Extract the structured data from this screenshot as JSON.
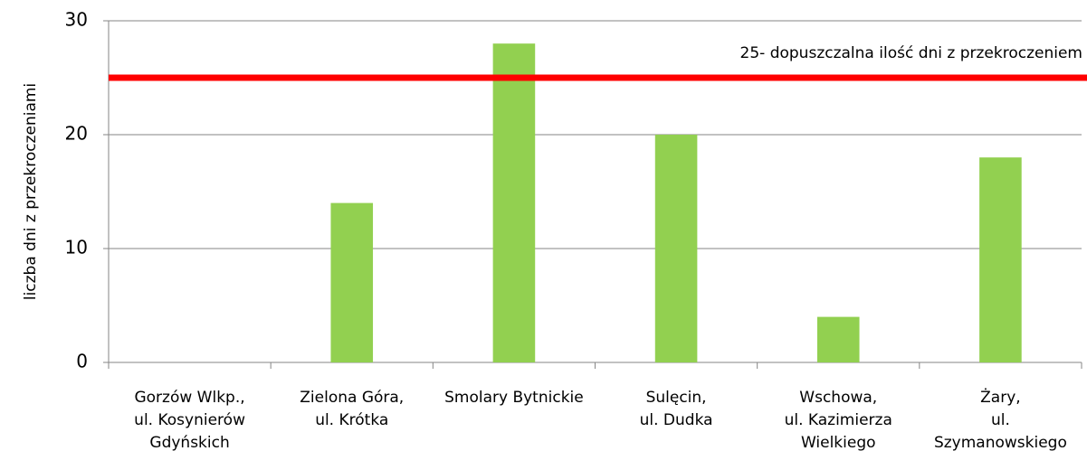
{
  "chart_data": {
    "type": "bar",
    "y_label": "liczba dni z przekroczeniami",
    "categories": [
      "Gorzów Wlkp.,\nul. Kosynierów\nGdyńskich",
      "Zielona Góra,\nul. Krótka",
      "Smolary Bytnickie",
      "Sulęcin,\nul. Dudka",
      "Wschowa,\nul. Kazimierza\nWielkiego",
      "Żary,\nul.\nSzymanowskiego"
    ],
    "values": [
      0,
      14,
      28,
      20,
      4,
      18
    ],
    "color": "#92d050",
    "ylim": [
      0,
      30
    ],
    "yticks": [
      0,
      10,
      20,
      30
    ],
    "grid": true,
    "reference_line": {
      "value": 25,
      "label": "25- dopuszczalna ilość dni z przekroczeniem",
      "color": "#ff0000"
    }
  }
}
